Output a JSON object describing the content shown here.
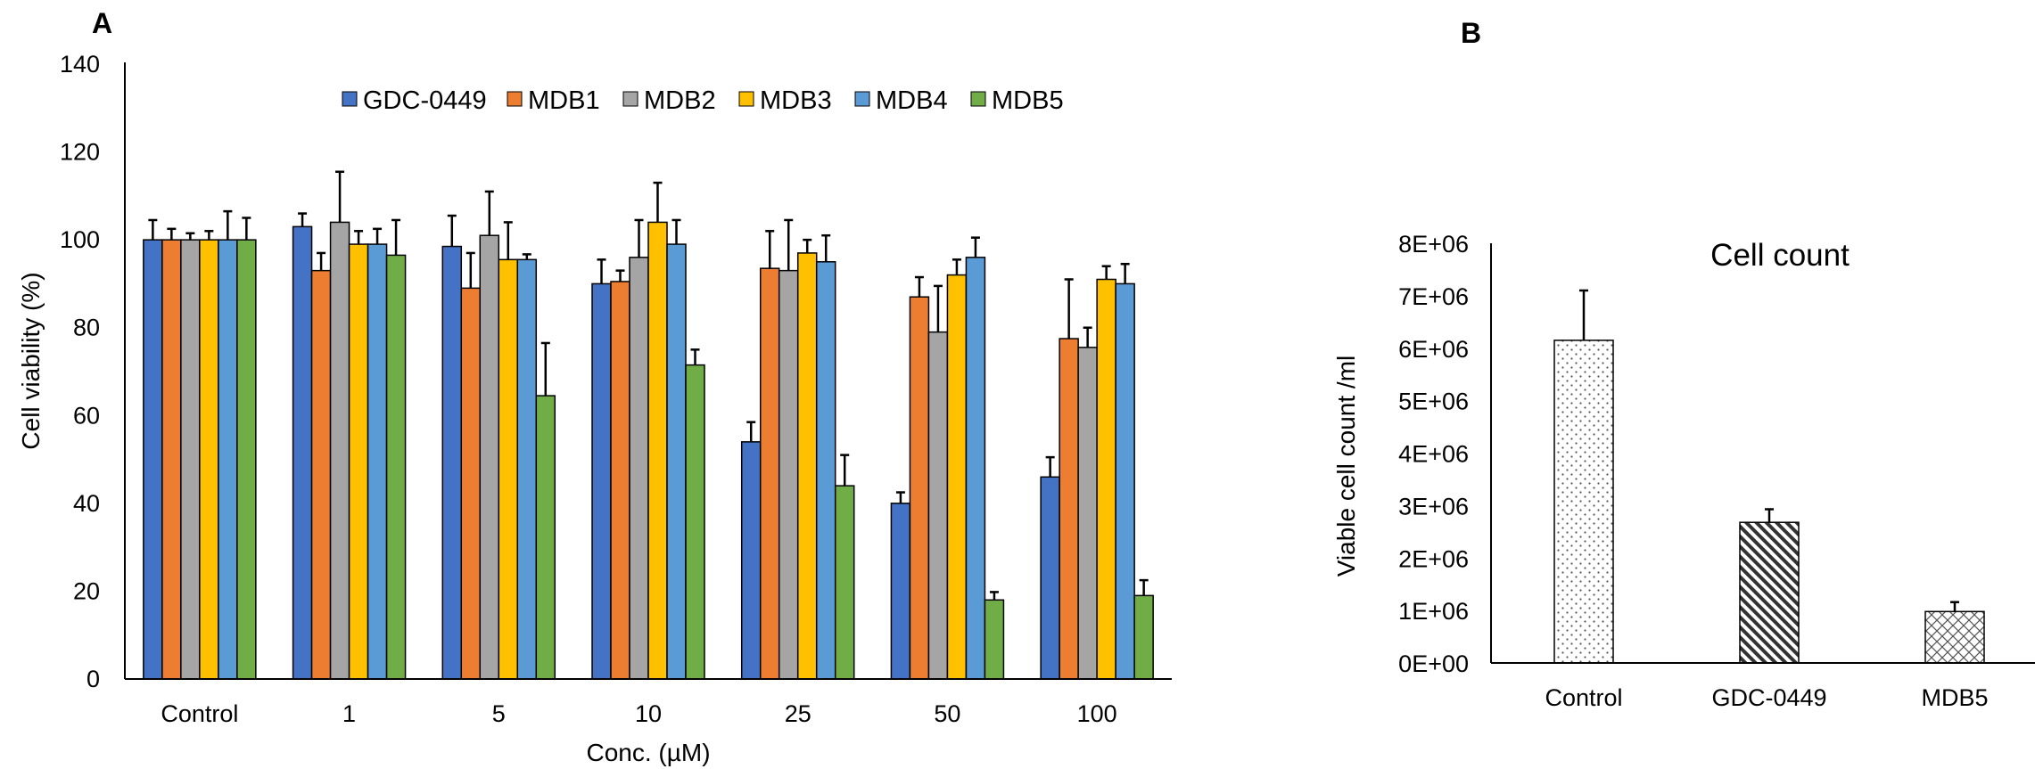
{
  "panels": {
    "a_label": "A",
    "b_label": "B"
  },
  "chart_data": [
    {
      "type": "bar",
      "title": "",
      "xlabel": "Conc. (µM)",
      "ylabel": "Cell viability (%)",
      "ylim": [
        0,
        140
      ],
      "yticks": [
        "0",
        "20",
        "40",
        "60",
        "80",
        "100",
        "120",
        "140"
      ],
      "categories": [
        "Control",
        "1",
        "5",
        "10",
        "25",
        "50",
        "100"
      ],
      "legend_position": "top",
      "grid": false,
      "series": [
        {
          "name": "GDC-0449",
          "color": "#4472c4",
          "values": [
            100,
            103,
            98.5,
            90,
            54,
            40,
            46
          ],
          "errors": [
            4.5,
            3,
            7,
            5.5,
            4.5,
            2.5,
            4.5
          ]
        },
        {
          "name": "MDB1",
          "color": "#ed7d31",
          "values": [
            100,
            93,
            89,
            90.5,
            93.5,
            87,
            77.5
          ],
          "errors": [
            2.5,
            4,
            8,
            2.5,
            8.5,
            4.5,
            13.5
          ]
        },
        {
          "name": "MDB2",
          "color": "#a5a5a5",
          "values": [
            100,
            104,
            101,
            96,
            93,
            79,
            75.5
          ],
          "errors": [
            1.5,
            11.5,
            10,
            8.5,
            11.5,
            10.5,
            4.5
          ]
        },
        {
          "name": "MDB3",
          "color": "#ffc000",
          "values": [
            100,
            99,
            95.5,
            104,
            97,
            92,
            91
          ],
          "errors": [
            2,
            3,
            8.5,
            9,
            3,
            3.5,
            3
          ]
        },
        {
          "name": "MDB4",
          "color": "#5b9bd5",
          "values": [
            100,
            99,
            95.5,
            99,
            95,
            96,
            90
          ],
          "errors": [
            6.5,
            3.5,
            1.2,
            5.5,
            6,
            4.5,
            4.5
          ]
        },
        {
          "name": "MDB5",
          "color": "#70ad47",
          "values": [
            100,
            96.5,
            64.5,
            71.5,
            44,
            18,
            19
          ],
          "errors": [
            5,
            8,
            12,
            3.5,
            7,
            1.8,
            3.5
          ]
        }
      ]
    },
    {
      "type": "bar",
      "title": "Cell count",
      "xlabel": "",
      "ylabel": "Viable cell count /ml",
      "ylim": [
        0,
        8000000
      ],
      "yticks": [
        "0E+00",
        "1E+06",
        "2E+06",
        "3E+06",
        "4E+06",
        "5E+06",
        "6E+06",
        "7E+06",
        "8E+06"
      ],
      "categories": [
        "Control",
        "GDC-0449",
        "MDB5"
      ],
      "grid": false,
      "bar_fill": "patterned (dotted, diagonal hatch, crosshatch)",
      "values": [
        6150000,
        2680000,
        980000
      ],
      "errors": [
        950000,
        250000,
        180000
      ]
    }
  ]
}
